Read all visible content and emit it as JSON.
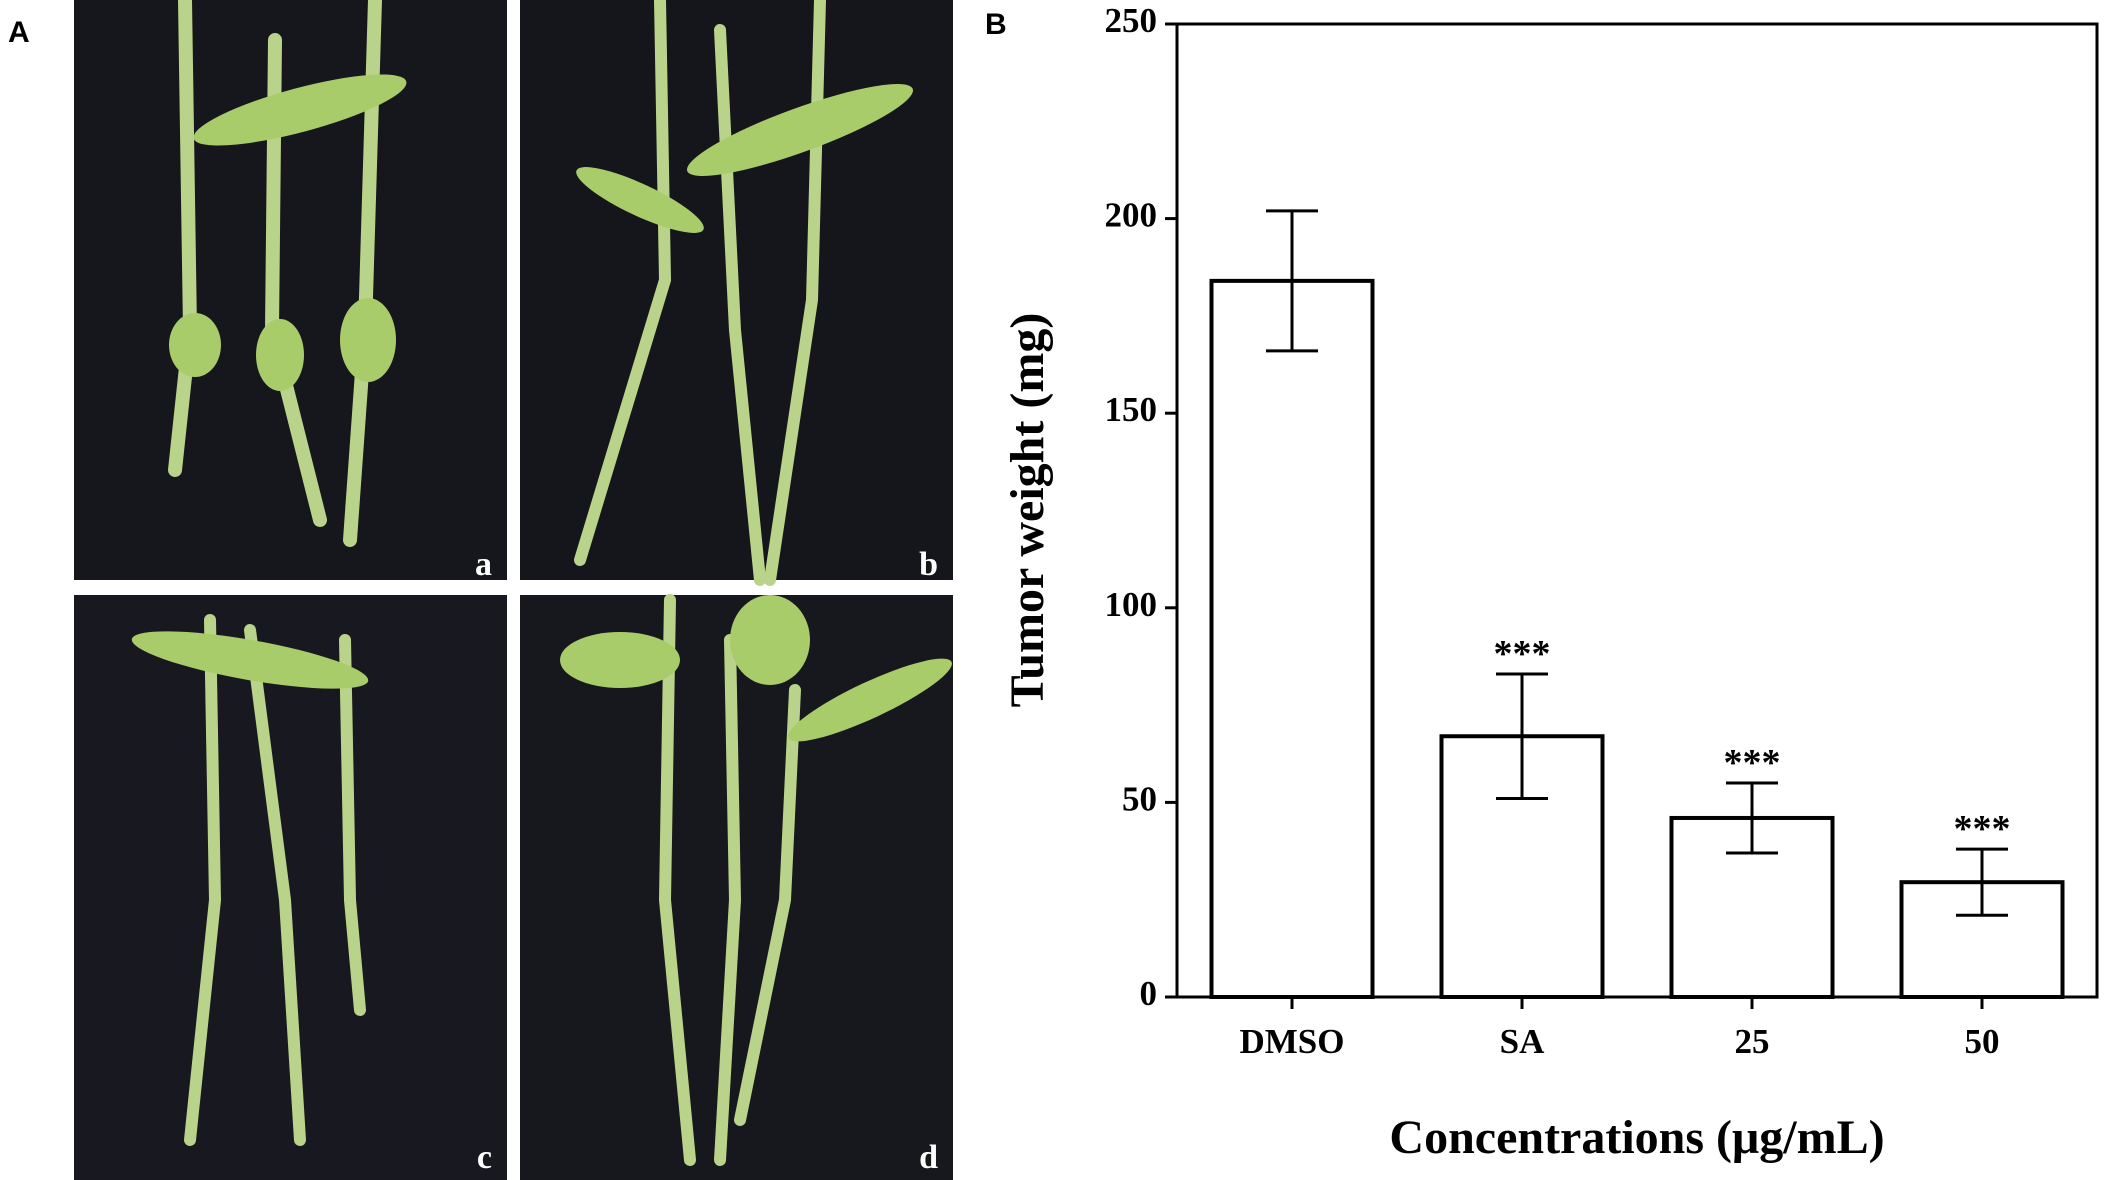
{
  "panels": {
    "left_label": "A",
    "right_label": "B",
    "photo_labels": [
      "a",
      "b",
      "c",
      "d"
    ]
  },
  "chart_data": {
    "type": "bar",
    "categories": [
      "DMSO",
      "SA",
      "25",
      "50"
    ],
    "values": [
      184,
      67,
      46,
      29.5
    ],
    "errors": [
      18,
      16,
      9,
      8.5
    ],
    "annotations": [
      null,
      "***",
      "***",
      "***"
    ],
    "color": "#ffffff",
    "ylabel": "Tumor weight (mg)",
    "xlabel": "Concentrations (μg/mL)",
    "ylim": [
      0,
      250
    ],
    "yticks": [
      0,
      50,
      100,
      150,
      200,
      250
    ],
    "grid": false
  }
}
